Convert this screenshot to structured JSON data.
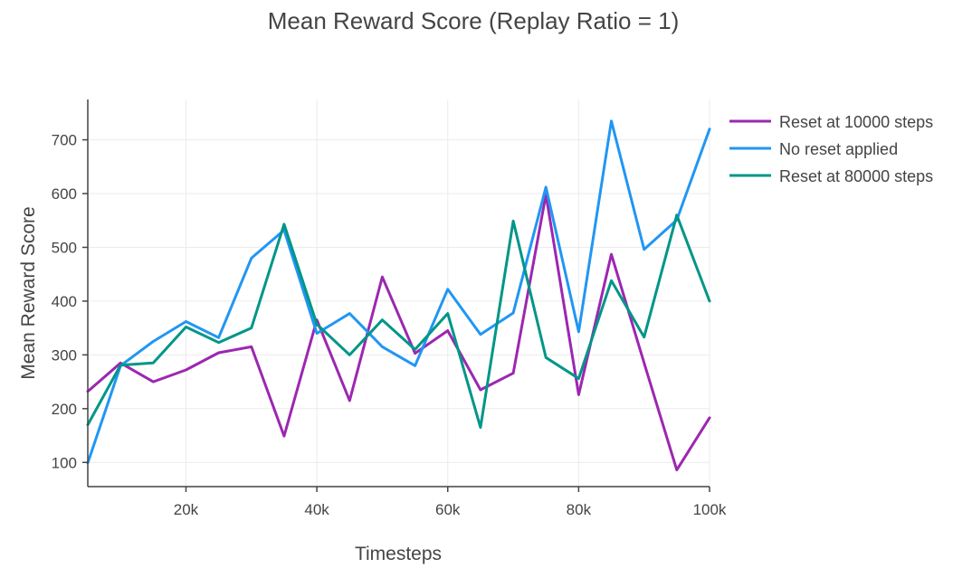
{
  "chart_data": {
    "type": "line",
    "title": "Mean Reward Score (Replay Ratio = 1)",
    "xlabel": "Timesteps",
    "ylabel": "Mean Reward Score",
    "xlim": [
      5000,
      100000
    ],
    "ylim": [
      55,
      775
    ],
    "x_ticks": [
      20000,
      40000,
      60000,
      80000,
      100000
    ],
    "x_tick_labels": [
      "20k",
      "40k",
      "60k",
      "80k",
      "100k"
    ],
    "y_ticks": [
      100,
      200,
      300,
      400,
      500,
      600,
      700
    ],
    "y_tick_labels": [
      "100",
      "200",
      "300",
      "400",
      "500",
      "600",
      "700"
    ],
    "grid": true,
    "legend_position": "top-right-outside",
    "x": [
      5000,
      10000,
      15000,
      20000,
      25000,
      30000,
      35000,
      40000,
      45000,
      50000,
      55000,
      60000,
      65000,
      70000,
      75000,
      80000,
      85000,
      90000,
      95000,
      100000
    ],
    "series": [
      {
        "name": "Reset at 10000 steps",
        "color": "#9c27b0",
        "values": [
          232,
          285,
          250,
          272,
          304,
          315,
          149,
          365,
          215,
          445,
          303,
          345,
          235,
          266,
          598,
          226,
          487,
          285,
          86,
          183
        ]
      },
      {
        "name": "No reset applied",
        "color": "#2196f3",
        "values": [
          99,
          280,
          325,
          362,
          332,
          480,
          532,
          340,
          377,
          315,
          280,
          422,
          338,
          378,
          612,
          343,
          735,
          496,
          551,
          720
        ]
      },
      {
        "name": "Reset at 80000 steps",
        "color": "#009688",
        "values": [
          170,
          281,
          285,
          352,
          323,
          350,
          543,
          357,
          300,
          365,
          310,
          377,
          165,
          549,
          295,
          256,
          438,
          333,
          560,
          400
        ]
      }
    ]
  }
}
